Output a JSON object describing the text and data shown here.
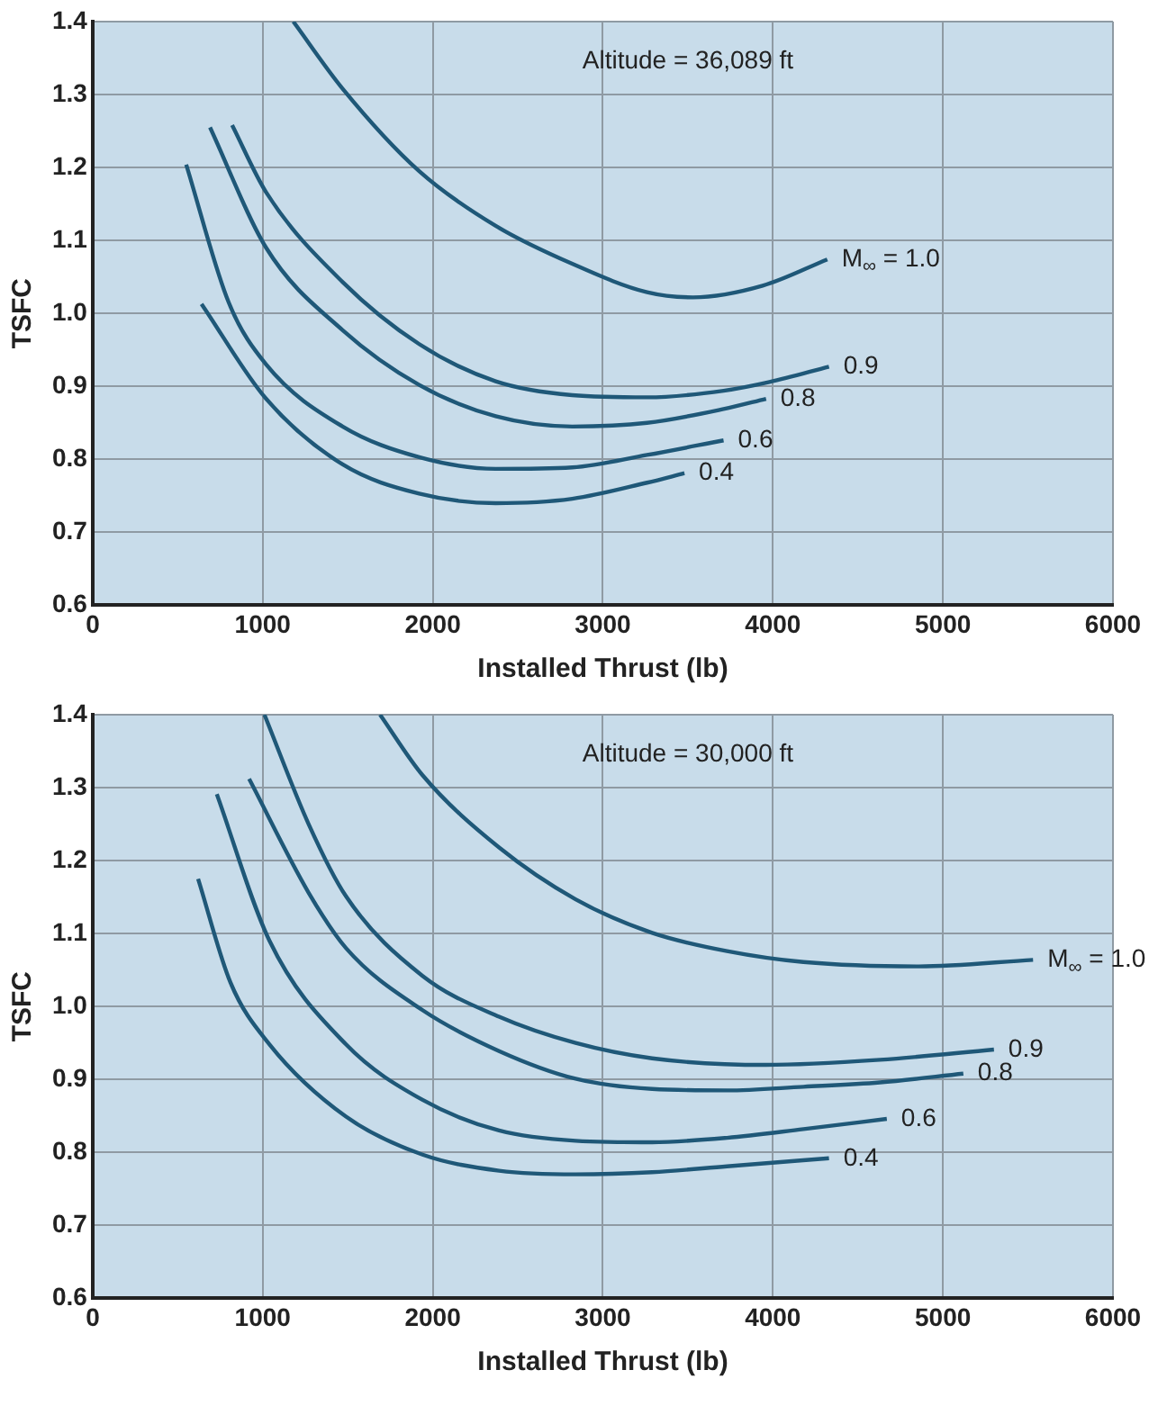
{
  "chart_data": [
    {
      "type": "line",
      "annotations": [
        "Altitude = 36,089 ft"
      ],
      "xlabel": "Installed Thrust (lb)",
      "ylabel": "TSFC",
      "xlim": [
        0,
        6000
      ],
      "xticks": [
        0,
        1000,
        2000,
        3000,
        4000,
        5000,
        6000
      ],
      "ylim": [
        0.6,
        1.4
      ],
      "yticks": [
        0.6,
        0.7,
        0.8,
        0.9,
        {
          "value": 1,
          "label": "1.0"
        },
        1.1,
        1.2,
        1.3,
        1.4
      ],
      "grid": true,
      "legend": false,
      "marker": "none",
      "line_style": "solid",
      "series": [
        {
          "name": "M$_{∞}$ = 1.0",
          "color": "#1f5878",
          "x": [
            1180,
            1470,
            1920,
            2370,
            2820,
            3260,
            3530,
            3940,
            4320
          ],
          "values": [
            1.4,
            1.308,
            1.195,
            1.12,
            1.068,
            1.029,
            1.022,
            1.038,
            1.074
          ]
        },
        {
          "name": "0.9",
          "color": "#1f5878",
          "x": [
            820,
            1020,
            1470,
            1920,
            2370,
            2820,
            3260,
            3710,
            3980,
            4330
          ],
          "values": [
            1.258,
            1.166,
            1.043,
            0.958,
            0.907,
            0.888,
            0.885,
            0.894,
            0.906,
            0.927
          ]
        },
        {
          "name": "0.8",
          "color": "#1f5878",
          "x": [
            690,
            1020,
            1470,
            1920,
            2370,
            2820,
            3260,
            3710,
            3960
          ],
          "values": [
            1.255,
            1.09,
            0.977,
            0.902,
            0.859,
            0.845,
            0.85,
            0.869,
            0.883
          ]
        },
        {
          "name": "0.6",
          "color": "#1f5878",
          "x": [
            550,
            800,
            1020,
            1470,
            1920,
            2370,
            2820,
            3260,
            3710
          ],
          "values": [
            1.204,
            1.015,
            0.93,
            0.845,
            0.803,
            0.787,
            0.789,
            0.806,
            0.826
          ]
        },
        {
          "name": "0.4",
          "color": "#1f5878",
          "x": [
            640,
            1020,
            1470,
            1920,
            2370,
            2820,
            3260,
            3480
          ],
          "values": [
            1.013,
            0.883,
            0.793,
            0.753,
            0.74,
            0.746,
            0.768,
            0.781
          ]
        }
      ]
    },
    {
      "type": "line",
      "annotations": [
        "Altitude = 30,000 ft"
      ],
      "xlabel": "Installed Thrust (lb)",
      "ylabel": "TSFC",
      "xlim": [
        0,
        6000
      ],
      "xticks": [
        0,
        1000,
        2000,
        3000,
        4000,
        5000,
        6000
      ],
      "ylim": [
        0.6,
        1.4
      ],
      "yticks": [
        0.6,
        0.7,
        0.8,
        0.9,
        {
          "value": 1,
          "label": "1.0"
        },
        1.1,
        1.2,
        1.3,
        1.4
      ],
      "grid": true,
      "legend": false,
      "marker": "none",
      "line_style": "solid",
      "series": [
        {
          "name": "M$_{∞}$ = 1.0",
          "color": "#1f5878",
          "x": [
            1690,
            1940,
            2390,
            2840,
            3290,
            3730,
            4180,
            4860,
            5530
          ],
          "values": [
            1.4,
            1.317,
            1.218,
            1.147,
            1.101,
            1.076,
            1.061,
            1.055,
            1.064
          ]
        },
        {
          "name": "0.9",
          "color": "#1f5878",
          "x": [
            1010,
            1270,
            1490,
            1940,
            2390,
            2840,
            3290,
            3960,
            4630,
            5300
          ],
          "values": [
            1.4,
            1.25,
            1.151,
            1.042,
            0.986,
            0.95,
            0.929,
            0.92,
            0.927,
            0.941
          ]
        },
        {
          "name": "0.8",
          "color": "#1f5878",
          "x": [
            920,
            1270,
            1490,
            1940,
            2390,
            2840,
            3290,
            3730,
            4180,
            4630,
            5120
          ],
          "values": [
            1.312,
            1.156,
            1.08,
            0.995,
            0.939,
            0.901,
            0.887,
            0.885,
            0.89,
            0.896,
            0.908
          ]
        },
        {
          "name": "0.6",
          "color": "#1f5878",
          "x": [
            730,
            1040,
            1490,
            1940,
            2390,
            2840,
            3290,
            3730,
            4180,
            4670
          ],
          "values": [
            1.291,
            1.09,
            0.948,
            0.872,
            0.83,
            0.816,
            0.814,
            0.82,
            0.832,
            0.846
          ]
        },
        {
          "name": "0.4",
          "color": "#1f5878",
          "x": [
            620,
            810,
            1040,
            1490,
            1940,
            2390,
            2840,
            3290,
            3730,
            4330
          ],
          "values": [
            1.175,
            1.033,
            0.948,
            0.849,
            0.797,
            0.775,
            0.77,
            0.773,
            0.781,
            0.792
          ]
        }
      ]
    }
  ]
}
